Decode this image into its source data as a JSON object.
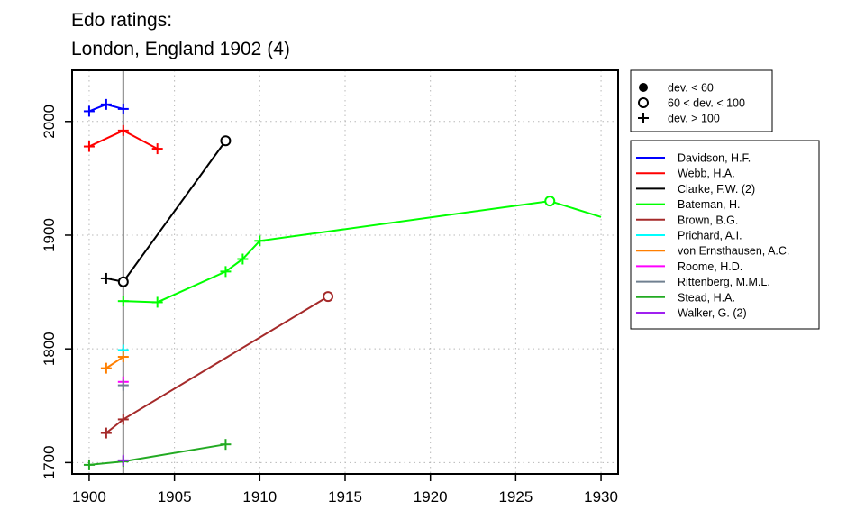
{
  "chart_data": {
    "type": "line",
    "title_line1": "Edo ratings:",
    "title_line2": "London, England 1902 (4)",
    "xlabel": "",
    "ylabel": "",
    "xlim": [
      1899,
      1931
    ],
    "ylim": [
      1690,
      2045
    ],
    "x_ticks": [
      1900,
      1905,
      1910,
      1915,
      1920,
      1925,
      1930
    ],
    "y_ticks": [
      1700,
      1800,
      1900,
      2000
    ],
    "grid": true,
    "reference_line_x": 1902,
    "marker_legend": [
      {
        "symbol": "filled-circle",
        "label": "dev. < 60"
      },
      {
        "symbol": "open-circle",
        "label": "60 < dev. < 100"
      },
      {
        "symbol": "plus",
        "label": "dev. > 100"
      }
    ],
    "series": [
      {
        "name": "Davidson, H.F.",
        "color": "#0000ff",
        "points": [
          {
            "x": 1900,
            "y": 2009,
            "m": "plus"
          },
          {
            "x": 1901,
            "y": 2015,
            "m": "plus"
          },
          {
            "x": 1902,
            "y": 2011,
            "m": "plus"
          }
        ]
      },
      {
        "name": "Webb, H.A.",
        "color": "#ff0000",
        "points": [
          {
            "x": 1900,
            "y": 1978,
            "m": "plus"
          },
          {
            "x": 1902,
            "y": 1992,
            "m": "plus"
          },
          {
            "x": 1904,
            "y": 1976,
            "m": "plus"
          }
        ]
      },
      {
        "name": "Clarke, F.W. (2)",
        "color": "#000000",
        "points": [
          {
            "x": 1901,
            "y": 1862,
            "m": "plus"
          },
          {
            "x": 1902,
            "y": 1859,
            "m": "open"
          },
          {
            "x": 1908,
            "y": 1983,
            "m": "open"
          }
        ]
      },
      {
        "name": "Bateman, H.",
        "color": "#00ff00",
        "points": [
          {
            "x": 1902,
            "y": 1842,
            "m": "plus"
          },
          {
            "x": 1904,
            "y": 1841,
            "m": "plus"
          },
          {
            "x": 1908,
            "y": 1868,
            "m": "plus"
          },
          {
            "x": 1909,
            "y": 1879,
            "m": "plus"
          },
          {
            "x": 1910,
            "y": 1895,
            "m": "plus"
          },
          {
            "x": 1927,
            "y": 1930,
            "m": "open"
          },
          {
            "x": 1930,
            "y": 1916,
            "m": "none"
          }
        ]
      },
      {
        "name": "Brown, B.G.",
        "color": "#a52a2a",
        "points": [
          {
            "x": 1901,
            "y": 1726,
            "m": "plus"
          },
          {
            "x": 1902,
            "y": 1738,
            "m": "plus"
          },
          {
            "x": 1914,
            "y": 1846,
            "m": "open"
          }
        ]
      },
      {
        "name": "Prichard, A.I.",
        "color": "#00ffff",
        "points": [
          {
            "x": 1902,
            "y": 1799,
            "m": "plus"
          }
        ]
      },
      {
        "name": "von Ernsthausen, A.C.",
        "color": "#ff7f00",
        "points": [
          {
            "x": 1901,
            "y": 1783,
            "m": "plus"
          },
          {
            "x": 1902,
            "y": 1793,
            "m": "plus"
          }
        ]
      },
      {
        "name": "Roome, H.D.",
        "color": "#ff00ff",
        "points": [
          {
            "x": 1902,
            "y": 1771,
            "m": "plus"
          }
        ]
      },
      {
        "name": "Rittenberg, M.M.L.",
        "color": "#708090",
        "points": [
          {
            "x": 1902,
            "y": 1768,
            "m": "plus"
          }
        ]
      },
      {
        "name": "Stead, H.A.",
        "color": "#22aa22",
        "points": [
          {
            "x": 1900,
            "y": 1698,
            "m": "plus"
          },
          {
            "x": 1902,
            "y": 1701,
            "m": "plus"
          },
          {
            "x": 1908,
            "y": 1716,
            "m": "plus"
          }
        ]
      },
      {
        "name": "Walker, G. (2)",
        "color": "#a020f0",
        "points": [
          {
            "x": 1902,
            "y": 1702,
            "m": "plus"
          }
        ]
      }
    ]
  }
}
